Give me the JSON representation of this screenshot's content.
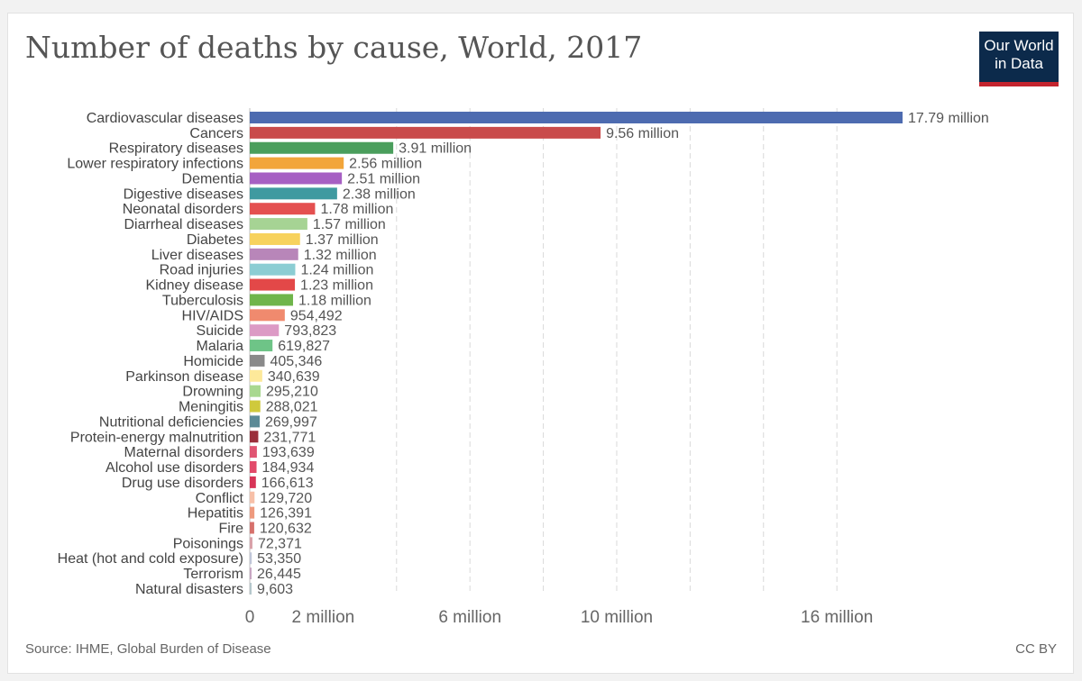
{
  "header": {
    "title": "Number of deaths by cause, World, 2017"
  },
  "logo": {
    "line1": "Our World",
    "line2": "in Data"
  },
  "footer": {
    "source": "Source: IHME, Global Burden of Disease",
    "license": "CC BY"
  },
  "chart_data": {
    "type": "bar",
    "orientation": "horizontal",
    "title": "Number of deaths by cause, World, 2017",
    "xlabel": "",
    "ylabel": "",
    "xlim": [
      0,
      17790000
    ],
    "grid": true,
    "ticks": [
      {
        "value": 0,
        "label": "0"
      },
      {
        "value": 2000000,
        "label": "2 million"
      },
      {
        "value": 6000000,
        "label": "6 million"
      },
      {
        "value": 10000000,
        "label": "10 million"
      },
      {
        "value": 16000000,
        "label": "16 million"
      }
    ],
    "gridlines": [
      4000000,
      6000000,
      8000000,
      10000000,
      12000000,
      14000000,
      16000000
    ],
    "bars": [
      {
        "category": "Cardiovascular diseases",
        "value": 17790000,
        "label": "17.79 million",
        "color": "#4d6bb0"
      },
      {
        "category": "Cancers",
        "value": 9560000,
        "label": "9.56 million",
        "color": "#c94b4b"
      },
      {
        "category": "Respiratory diseases",
        "value": 3910000,
        "label": "3.91 million",
        "color": "#4a9e5c"
      },
      {
        "category": "Lower respiratory infections",
        "value": 2560000,
        "label": "2.56 million",
        "color": "#f2a53a"
      },
      {
        "category": "Dementia",
        "value": 2510000,
        "label": "2.51 million",
        "color": "#a65fc3"
      },
      {
        "category": "Digestive diseases",
        "value": 2380000,
        "label": "2.38 million",
        "color": "#3f9aa0"
      },
      {
        "category": "Neonatal disorders",
        "value": 1780000,
        "label": "1.78 million",
        "color": "#e45050"
      },
      {
        "category": "Diarrheal diseases",
        "value": 1570000,
        "label": "1.57 million",
        "color": "#a6d394"
      },
      {
        "category": "Diabetes",
        "value": 1370000,
        "label": "1.37 million",
        "color": "#f7d25d"
      },
      {
        "category": "Liver diseases",
        "value": 1320000,
        "label": "1.32 million",
        "color": "#b886b9"
      },
      {
        "category": "Road injuries",
        "value": 1240000,
        "label": "1.24 million",
        "color": "#8ccdd3"
      },
      {
        "category": "Kidney disease",
        "value": 1230000,
        "label": "1.23 million",
        "color": "#e34848"
      },
      {
        "category": "Tuberculosis",
        "value": 1180000,
        "label": "1.18 million",
        "color": "#6fb54b"
      },
      {
        "category": "HIV/AIDS",
        "value": 954492,
        "label": "954,492",
        "color": "#f08a6e"
      },
      {
        "category": "Suicide",
        "value": 793823,
        "label": "793,823",
        "color": "#dc9ac5"
      },
      {
        "category": "Malaria",
        "value": 619827,
        "label": "619,827",
        "color": "#6ec487"
      },
      {
        "category": "Homicide",
        "value": 405346,
        "label": "405,346",
        "color": "#8a8a8a"
      },
      {
        "category": "Parkinson disease",
        "value": 340639,
        "label": "340,639",
        "color": "#fde99a"
      },
      {
        "category": "Drowning",
        "value": 295210,
        "label": "295,210",
        "color": "#a9d88f"
      },
      {
        "category": "Meningitis",
        "value": 288021,
        "label": "288,021",
        "color": "#cfc93c"
      },
      {
        "category": "Nutritional deficiencies",
        "value": 269997,
        "label": "269,997",
        "color": "#5b8a96"
      },
      {
        "category": "Protein-energy malnutrition",
        "value": 231771,
        "label": "231,771",
        "color": "#9b2f3b"
      },
      {
        "category": "Maternal disorders",
        "value": 193639,
        "label": "193,639",
        "color": "#e05572"
      },
      {
        "category": "Alcohol use disorders",
        "value": 184934,
        "label": "184,934",
        "color": "#e24a6a"
      },
      {
        "category": "Drug use disorders",
        "value": 166613,
        "label": "166,613",
        "color": "#d73457"
      },
      {
        "category": "Conflict",
        "value": 129720,
        "label": "129,720",
        "color": "#f7c0a8"
      },
      {
        "category": "Hepatitis",
        "value": 126391,
        "label": "126,391",
        "color": "#ee9a7e"
      },
      {
        "category": "Fire",
        "value": 120632,
        "label": "120,632",
        "color": "#d6716c"
      },
      {
        "category": "Poisonings",
        "value": 72371,
        "label": "72,371",
        "color": "#d8a0a8"
      },
      {
        "category": "Heat (hot and cold exposure)",
        "value": 53350,
        "label": "53,350",
        "color": "#c0c6d8"
      },
      {
        "category": "Terrorism",
        "value": 26445,
        "label": "26,445",
        "color": "#c7a6c2"
      },
      {
        "category": "Natural disasters",
        "value": 9603,
        "label": "9,603",
        "color": "#b5c7cc"
      }
    ]
  }
}
